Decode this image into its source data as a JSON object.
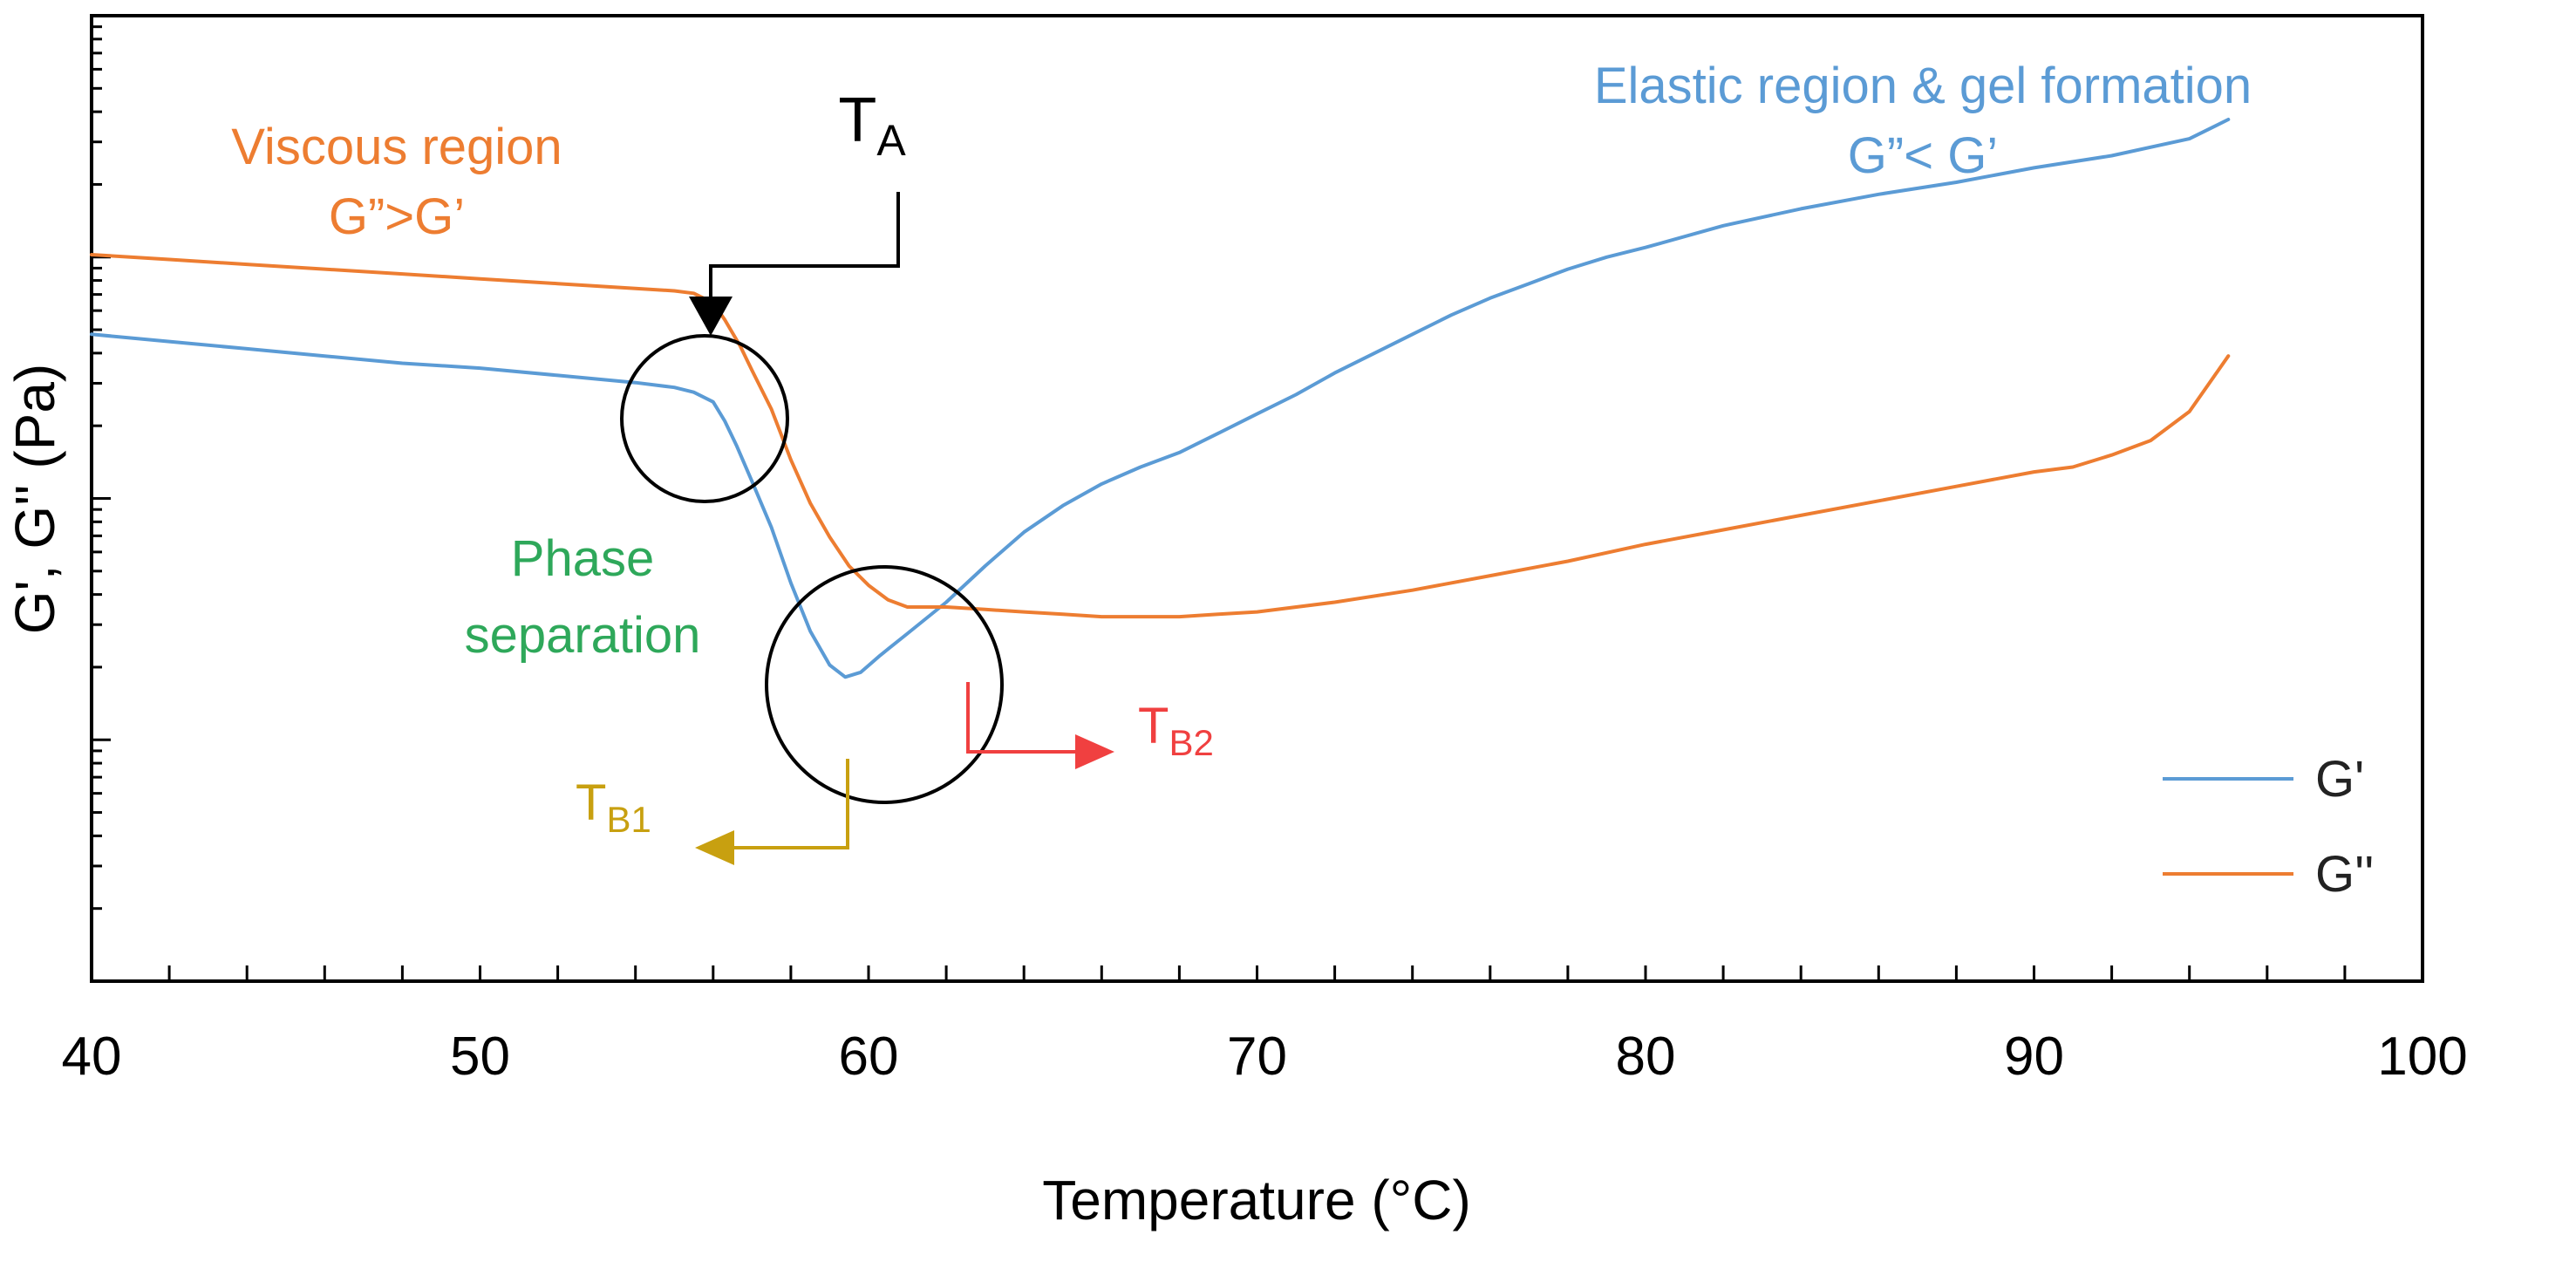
{
  "chart_data": {
    "type": "line",
    "title": "",
    "xlabel": "Temperature (°C)",
    "ylabel": "G', G'' (Pa)",
    "xlim": [
      40,
      100
    ],
    "x_ticks": [
      40,
      50,
      60,
      70,
      80,
      90,
      100
    ],
    "x_tick_labels": [
      "40",
      "50",
      "60",
      "70",
      "80",
      "90",
      "100"
    ],
    "y_scale": "log",
    "y_decade_range": [
      -1,
      3
    ],
    "y_tick_labels_shown": false,
    "grid": false,
    "legend_position": "bottom-right",
    "colors": {
      "G'": "#5b9bd5",
      "G''": "#ed7d31"
    },
    "series": [
      {
        "name": "G'",
        "color": "#5b9bd5",
        "x": [
          40,
          42,
          44,
          46,
          48,
          50,
          52,
          54,
          55,
          55.5,
          56,
          56.3,
          56.6,
          57,
          57.5,
          58,
          58.5,
          59,
          59.4,
          59.8,
          60.3,
          61,
          62,
          63,
          64,
          65,
          66,
          67,
          68,
          69,
          70,
          71,
          72,
          73,
          74,
          75,
          76,
          77,
          78,
          79,
          80,
          82,
          84,
          86,
          88,
          90,
          92,
          94,
          95
        ],
        "y": [
          1.68,
          1.65,
          1.62,
          1.59,
          1.56,
          1.54,
          1.51,
          1.48,
          1.46,
          1.44,
          1.4,
          1.32,
          1.22,
          1.07,
          0.88,
          0.65,
          0.45,
          0.31,
          0.26,
          0.28,
          0.35,
          0.44,
          0.57,
          0.72,
          0.86,
          0.97,
          1.06,
          1.13,
          1.19,
          1.27,
          1.35,
          1.43,
          1.52,
          1.6,
          1.68,
          1.76,
          1.83,
          1.89,
          1.95,
          2.0,
          2.04,
          2.13,
          2.2,
          2.26,
          2.31,
          2.37,
          2.42,
          2.49,
          2.57
        ]
      },
      {
        "name": "G''",
        "color": "#ed7d31",
        "x": [
          40,
          42,
          44,
          46,
          48,
          50,
          52,
          54,
          55,
          55.5,
          56,
          56.3,
          56.7,
          57,
          57.5,
          58,
          58.5,
          59,
          59.5,
          60,
          60.5,
          61,
          62,
          63,
          64,
          65,
          66,
          67,
          68,
          69,
          70,
          72,
          74,
          76,
          78,
          80,
          82,
          84,
          86,
          88,
          90,
          91,
          92,
          93,
          94,
          95
        ],
        "y": [
          2.01,
          1.99,
          1.97,
          1.95,
          1.93,
          1.91,
          1.89,
          1.87,
          1.86,
          1.85,
          1.81,
          1.74,
          1.63,
          1.53,
          1.37,
          1.16,
          0.98,
          0.84,
          0.72,
          0.64,
          0.58,
          0.55,
          0.55,
          0.54,
          0.53,
          0.52,
          0.51,
          0.51,
          0.51,
          0.52,
          0.53,
          0.57,
          0.62,
          0.68,
          0.74,
          0.81,
          0.87,
          0.93,
          0.99,
          1.05,
          1.11,
          1.13,
          1.18,
          1.24,
          1.36,
          1.59
        ]
      }
    ],
    "annotations": {
      "viscous_line1": "Viscous region",
      "viscous_line2": "G”>G’",
      "elastic_line1": "Elastic region & gel formation",
      "elastic_line2": "G”< G’",
      "phase_line1": "Phase",
      "phase_line2": "separation",
      "ta_main": "T",
      "ta_sub": "A",
      "tb1_main": "T",
      "tb1_sub": "B1",
      "tb2_main": "T",
      "tb2_sub": "B2"
    },
    "annotation_colors": {
      "viscous": "#ed7d31",
      "elastic": "#5b9bd5",
      "phase": "#2ea85a",
      "ta": "#000000",
      "tb1": "#c8a010",
      "tb2": "#f04040"
    },
    "legend": [
      {
        "label": "G'",
        "color": "#5b9bd5"
      },
      {
        "label": "G''",
        "color": "#ed7d31"
      }
    ]
  }
}
